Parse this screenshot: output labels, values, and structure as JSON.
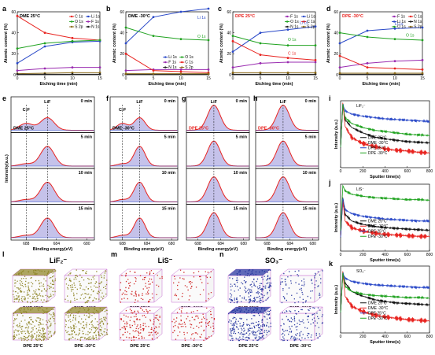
{
  "chart_data": [
    {
      "id": "a",
      "type": "line",
      "title": "DME 25°C",
      "xlabel": "Etching time (min)",
      "ylabel": "Atomic content (%)",
      "x": [
        0,
        5,
        10,
        15
      ],
      "xlim": [
        0,
        15
      ],
      "ylim": [
        0,
        60
      ],
      "xticks": [
        0,
        5,
        10,
        15
      ],
      "yticks": [
        0,
        20,
        40,
        60
      ],
      "legend": "top-right",
      "series": [
        {
          "name": "C 1s",
          "color": "#e8231f",
          "values": [
            56,
            40,
            35,
            33
          ]
        },
        {
          "name": "Li 1s",
          "color": "#2a49c8",
          "values": [
            11,
            27,
            31,
            32
          ]
        },
        {
          "name": "O 1s",
          "color": "#21a321",
          "values": [
            25,
            30,
            32,
            33
          ]
        },
        {
          "name": "F 1s",
          "color": "#9a2bb0",
          "values": [
            4,
            6,
            7,
            7
          ]
        },
        {
          "name": "S 2p",
          "color": "#8b6a1a",
          "values": [
            1,
            1.5,
            2,
            2
          ]
        },
        {
          "name": "N 1s",
          "color": "#222222",
          "values": [
            0.5,
            0.5,
            0.5,
            0.5
          ]
        }
      ]
    },
    {
      "id": "b",
      "type": "line",
      "title": "DME -30°C",
      "xlabel": "Etching time (min)",
      "ylabel": "Atomic content (%)",
      "x": [
        0,
        5,
        10,
        15
      ],
      "xlim": [
        0,
        15
      ],
      "ylim": [
        0,
        60
      ],
      "xticks": [
        0,
        5,
        10,
        15
      ],
      "yticks": [
        0,
        20,
        40,
        60
      ],
      "legend": "bottom-right",
      "series": [
        {
          "name": "Li 1s",
          "color": "#2a49c8",
          "values": [
            30,
            55,
            60,
            63
          ]
        },
        {
          "name": "O 1s",
          "color": "#21a321",
          "values": [
            45,
            37,
            34,
            33
          ]
        },
        {
          "name": "F 1s",
          "color": "#9a2bb0",
          "values": [
            4,
            5,
            5,
            5
          ]
        },
        {
          "name": "C 1s",
          "color": "#e8231f",
          "values": [
            20,
            4,
            3,
            2
          ]
        },
        {
          "name": "N 1s",
          "color": "#222222",
          "values": [
            0.5,
            0.5,
            0.5,
            0.5
          ]
        },
        {
          "name": "S 2p",
          "color": "#8b6a1a",
          "values": [
            1,
            1,
            1,
            1
          ]
        }
      ]
    },
    {
      "id": "c",
      "type": "line",
      "title": "DPE 25°C",
      "xlabel": "Etching time (min)",
      "ylabel": "Atomic content (%)",
      "x": [
        0,
        5,
        10,
        15
      ],
      "xlim": [
        0,
        15
      ],
      "ylim": [
        0,
        60
      ],
      "xticks": [
        0,
        5,
        10,
        15
      ],
      "yticks": [
        0,
        20,
        40,
        60
      ],
      "legend": "top-right",
      "series": [
        {
          "name": "F 1s",
          "color": "#9a2bb0",
          "values": [
            7,
            11,
            12,
            12
          ]
        },
        {
          "name": "Li 1s",
          "color": "#2a49c8",
          "values": [
            22,
            40,
            43,
            46
          ]
        },
        {
          "name": "O 1s",
          "color": "#21a321",
          "values": [
            37,
            30,
            28,
            28
          ]
        },
        {
          "name": "C 1s",
          "color": "#e8231f",
          "values": [
            32,
            19,
            16,
            14
          ]
        },
        {
          "name": "N 1s",
          "color": "#222222",
          "values": [
            0.5,
            0.5,
            0.5,
            0.5
          ]
        },
        {
          "name": "S 2p",
          "color": "#8b6a1a",
          "values": [
            2,
            2,
            2,
            2
          ]
        }
      ]
    },
    {
      "id": "d",
      "type": "line",
      "title": "DPE -30°C",
      "xlabel": "Etching time (min)",
      "ylabel": "Atomic content (%)",
      "x": [
        0,
        5,
        10,
        15
      ],
      "xlim": [
        0,
        15
      ],
      "ylim": [
        0,
        60
      ],
      "xticks": [
        0,
        5,
        10,
        15
      ],
      "yticks": [
        0,
        20,
        40,
        60
      ],
      "legend": "top-right",
      "series": [
        {
          "name": "F 1s",
          "color": "#9a2bb0",
          "values": [
            7,
            11,
            13,
            14
          ]
        },
        {
          "name": "C 1s",
          "color": "#e8231f",
          "values": [
            18,
            7,
            6,
            5
          ]
        },
        {
          "name": "Li 1s",
          "color": "#2a49c8",
          "values": [
            30,
            42,
            44,
            45
          ]
        },
        {
          "name": "N 1s",
          "color": "#222222",
          "values": [
            0.5,
            0.5,
            0.5,
            0.5
          ]
        },
        {
          "name": "O 1s",
          "color": "#21a321",
          "values": [
            40,
            36,
            34,
            33
          ]
        },
        {
          "name": "S 2p",
          "color": "#8b6a1a",
          "values": [
            1.5,
            1.5,
            1.5,
            1.5
          ]
        }
      ]
    },
    {
      "id": "e",
      "type": "line",
      "title": "DME 25°C",
      "xlabel": "Binding energy(eV)",
      "ylabel": "Intensity(a.u.)",
      "xlim": [
        690,
        679
      ],
      "xticks": [
        688,
        684,
        680
      ],
      "peaks": [
        "C-F",
        "LiF"
      ],
      "slices": [
        "0 min",
        "5 min",
        "10 min",
        "15 min"
      ],
      "cf_peak": 688,
      "lif_peak": 685.2
    },
    {
      "id": "f",
      "type": "line",
      "title": "DME -30°C",
      "xlabel": "Binding energy(eV)",
      "xlim": [
        690,
        679
      ],
      "xticks": [
        688,
        684,
        680
      ],
      "peaks": [
        "C-F",
        "LiF"
      ],
      "slices": [
        "0 min",
        "5 min",
        "10 min",
        "15 min"
      ],
      "cf_peak": 688,
      "lif_peak": 685.2
    },
    {
      "id": "g",
      "type": "line",
      "title": "DPE 25°C",
      "xlabel": "Binding energy(eV)",
      "xlim": [
        690,
        679
      ],
      "xticks": [
        688,
        684,
        680
      ],
      "peaks": [
        "LiF"
      ],
      "slices": [
        "0 min",
        "5 min",
        "10 min",
        "15 min"
      ],
      "lif_peak": 685.2
    },
    {
      "id": "h",
      "type": "line",
      "title": "DPE -30°C",
      "xlabel": "Binding energy(eV)",
      "xlim": [
        690,
        679
      ],
      "xticks": [
        688,
        684,
        680
      ],
      "peaks": [
        "LiF"
      ],
      "slices": [
        "0 min",
        "5 min",
        "10 min",
        "15 min"
      ],
      "lif_peak": 685.2
    },
    {
      "id": "i",
      "type": "line",
      "title": "LiF₂⁻",
      "xlabel": "Sputter time(s)",
      "ylabel": "Intensity (a.u.)",
      "xlim": [
        0,
        800
      ],
      "xticks": [
        0,
        200,
        400,
        600,
        800
      ],
      "series": [
        {
          "name": "DME 25°C",
          "color": "#111111",
          "x": [
            0,
            20,
            40,
            100,
            200,
            300,
            400,
            500,
            600,
            700,
            800
          ],
          "values": [
            0.3,
            0.95,
            0.72,
            0.6,
            0.52,
            0.46,
            0.43,
            0.41,
            0.39,
            0.38,
            0.37
          ]
        },
        {
          "name": "DME -30°C",
          "color": "#e8231f",
          "x": [
            0,
            20,
            40,
            100,
            200,
            300,
            400,
            500,
            600,
            700,
            800
          ],
          "values": [
            0.3,
            0.95,
            0.62,
            0.45,
            0.36,
            0.32,
            0.28,
            0.26,
            0.25,
            0.23,
            0.22
          ]
        },
        {
          "name": "DPE 25°C",
          "color": "#2a49c8",
          "x": [
            0,
            20,
            40,
            100,
            200,
            300,
            400,
            500,
            600,
            700,
            800
          ],
          "values": [
            0.3,
            0.95,
            0.85,
            0.8,
            0.77,
            0.75,
            0.73,
            0.72,
            0.71,
            0.7,
            0.69
          ]
        },
        {
          "name": "DPE -30°C",
          "color": "#21a321",
          "x": [
            0,
            20,
            40,
            100,
            200,
            300,
            400,
            500,
            600,
            700,
            800
          ],
          "values": [
            0.3,
            0.95,
            0.75,
            0.66,
            0.6,
            0.56,
            0.54,
            0.52,
            0.5,
            0.49,
            0.48
          ]
        }
      ]
    },
    {
      "id": "j",
      "type": "line",
      "title": "LiS⁻",
      "xlabel": "Sputter time(s)",
      "ylabel": "Intensity (a.u.)",
      "xlim": [
        0,
        800
      ],
      "xticks": [
        0,
        200,
        400,
        600,
        800
      ],
      "series": [
        {
          "name": "DME 25°C",
          "color": "#111111",
          "x": [
            0,
            20,
            40,
            100,
            200,
            300,
            400,
            500,
            600,
            700,
            800
          ],
          "values": [
            0.2,
            0.8,
            0.55,
            0.45,
            0.4,
            0.37,
            0.35,
            0.34,
            0.33,
            0.32,
            0.31
          ]
        },
        {
          "name": "DME -30°C",
          "color": "#e8231f",
          "x": [
            0,
            20,
            40,
            100,
            200,
            300,
            400,
            500,
            600,
            700,
            800
          ],
          "values": [
            0.2,
            0.75,
            0.45,
            0.35,
            0.3,
            0.27,
            0.25,
            0.24,
            0.23,
            0.22,
            0.22
          ]
        },
        {
          "name": "DPE 25°C",
          "color": "#2a49c8",
          "x": [
            0,
            20,
            40,
            100,
            200,
            300,
            400,
            500,
            600,
            700,
            800
          ],
          "values": [
            0.2,
            0.8,
            0.62,
            0.56,
            0.52,
            0.5,
            0.48,
            0.47,
            0.46,
            0.45,
            0.45
          ]
        },
        {
          "name": "DPE -30°C",
          "color": "#21a321",
          "x": [
            0,
            20,
            40,
            100,
            200,
            300,
            400,
            500,
            600,
            700,
            800
          ],
          "values": [
            0.3,
            0.98,
            0.9,
            0.85,
            0.82,
            0.8,
            0.79,
            0.78,
            0.77,
            0.77,
            0.76
          ]
        }
      ]
    },
    {
      "id": "k",
      "type": "line",
      "title": "SO₃⁻",
      "xlabel": "Sputter time(s)",
      "ylabel": "Intensity (a.u.)",
      "xlim": [
        0,
        800
      ],
      "xticks": [
        0,
        200,
        400,
        600,
        800
      ],
      "series": [
        {
          "name": "DME 25°C",
          "color": "#111111",
          "x": [
            0,
            20,
            40,
            100,
            200,
            300,
            400,
            500,
            600,
            700,
            800
          ],
          "values": [
            0.3,
            0.9,
            0.75,
            0.62,
            0.55,
            0.5,
            0.47,
            0.45,
            0.44,
            0.43,
            0.42
          ]
        },
        {
          "name": "DME -30°C",
          "color": "#e8231f",
          "x": [
            0,
            20,
            40,
            100,
            200,
            300,
            400,
            500,
            600,
            700,
            800
          ],
          "values": [
            0.3,
            0.9,
            0.55,
            0.4,
            0.32,
            0.27,
            0.24,
            0.22,
            0.2,
            0.19,
            0.18
          ]
        },
        {
          "name": "DPE 25°C",
          "color": "#2a49c8",
          "x": [
            0,
            20,
            40,
            100,
            200,
            300,
            400,
            500,
            600,
            700,
            800
          ],
          "values": [
            0.3,
            0.9,
            0.82,
            0.77,
            0.74,
            0.72,
            0.71,
            0.7,
            0.69,
            0.68,
            0.68
          ]
        },
        {
          "name": "DPE -30°C",
          "color": "#21a321",
          "x": [
            0,
            20,
            40,
            100,
            200,
            300,
            400,
            500,
            600,
            700,
            800
          ],
          "values": [
            0.3,
            0.9,
            0.7,
            0.62,
            0.58,
            0.56,
            0.55,
            0.54,
            0.53,
            0.53,
            0.52
          ]
        }
      ]
    }
  ],
  "letters": [
    "a",
    "b",
    "c",
    "d",
    "e",
    "f",
    "g",
    "h",
    "i",
    "j",
    "k",
    "l",
    "m",
    "n"
  ],
  "slice_labels": [
    "0 min",
    "5 min",
    "10 min",
    "15 min"
  ],
  "tof_3d": {
    "l": {
      "title": "LiF₂⁻",
      "color": "#8a7f1e",
      "labels": [
        "DME 25°C",
        "DME -30°C",
        "DPE 25°C",
        "DPE -30°C"
      ],
      "density": [
        0.8,
        0.55,
        0.95,
        0.85
      ]
    },
    "m": {
      "title": "LiS⁻",
      "color": "#cc1515",
      "labels": [
        "DME 25°C",
        "DME -30°C",
        "DPE 25°C",
        "DPE -30°C"
      ],
      "density": [
        0.35,
        0.2,
        0.55,
        0.4
      ]
    },
    "n": {
      "title": "SO₃⁻",
      "color": "#1a2a9a",
      "labels": [
        "DME 25°C",
        "DME -30°C",
        "DPE 25°C",
        "DPE -30°C"
      ],
      "density": [
        0.75,
        0.3,
        0.95,
        0.5
      ]
    }
  },
  "colors": {
    "dme25": "#111111",
    "dme-30": "#e8231f",
    "dpe25": "#2a49c8",
    "dpe-30": "#21a321",
    "fit": "#e8231f",
    "fill": "#5a4fc4"
  }
}
